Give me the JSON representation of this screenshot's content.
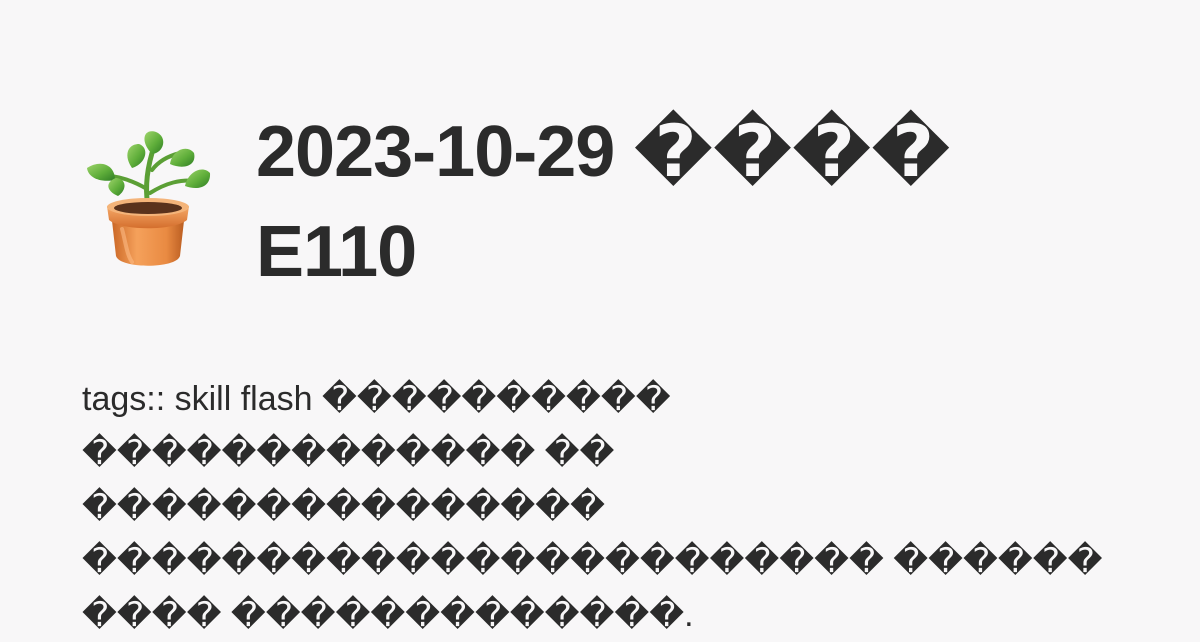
{
  "card": {
    "emoji": "potted-plant-icon",
    "title": "2023-10-29 ����\nE110",
    "description": "tags:: skill flash ���������� ������������� �� ��������������� ����������������������� ������ ���� �������������."
  },
  "colors": {
    "background": "#f8f7f8",
    "text": "#2b2b2b",
    "leaf": "#5fae3a",
    "pot": "#e98a42"
  }
}
